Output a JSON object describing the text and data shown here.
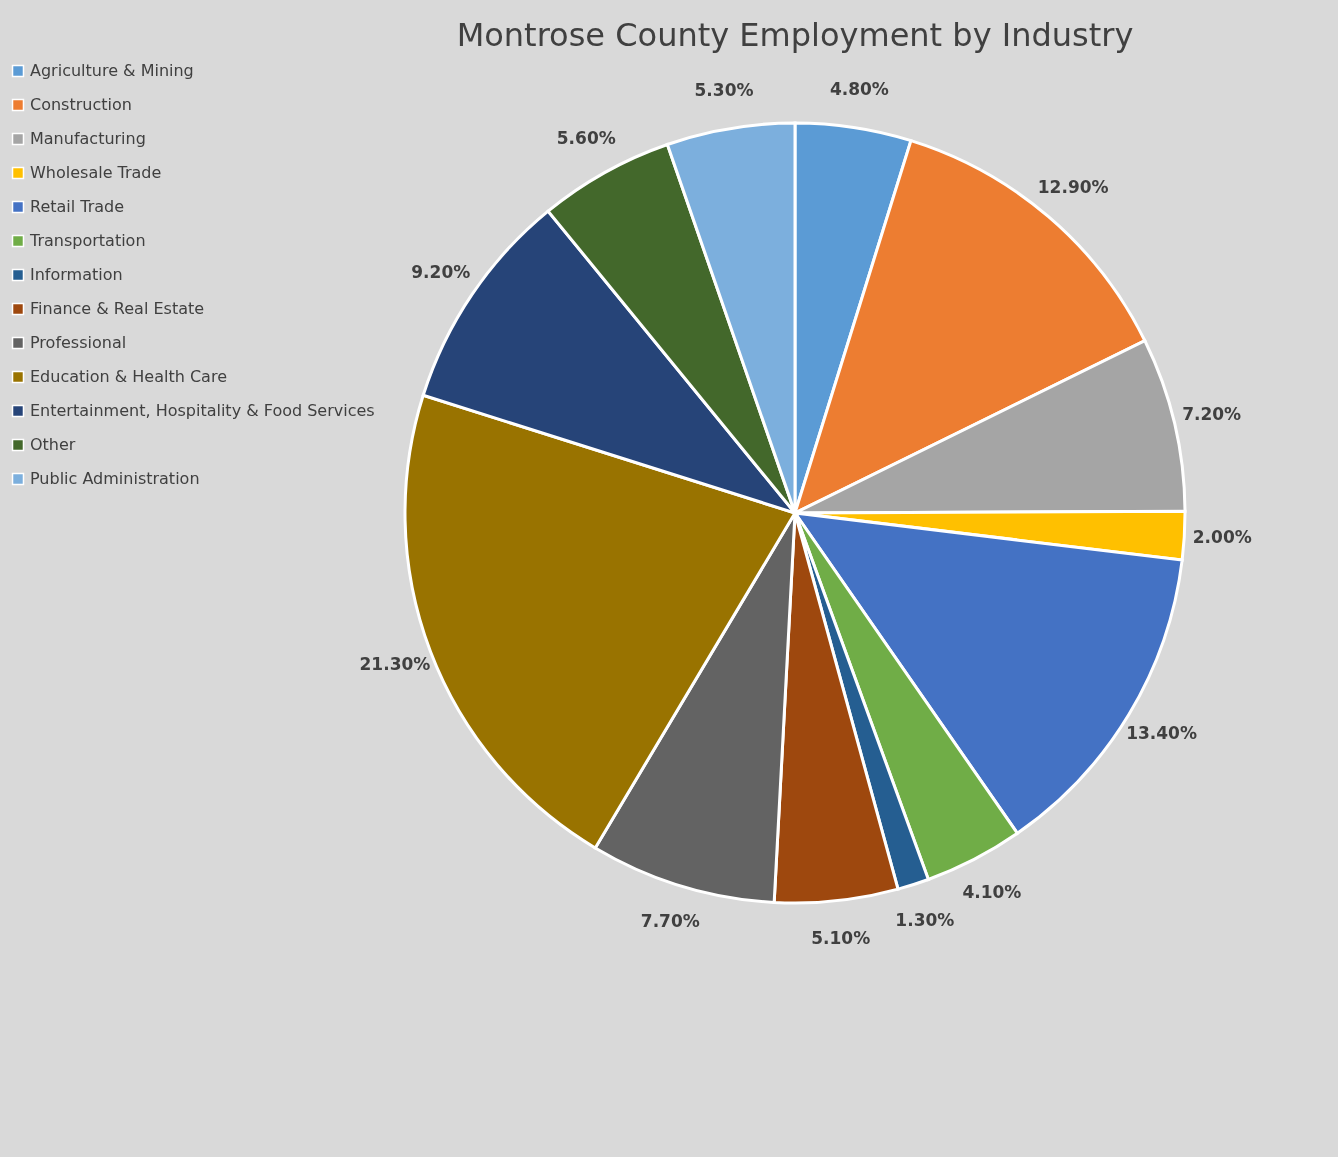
{
  "chart_data": {
    "type": "pie",
    "title": "Montrose County Employment by Industry",
    "categories": [
      "Agriculture & Mining",
      "Construction",
      "Manufacturing",
      "Wholesale Trade",
      "Retail Trade",
      "Transportation",
      "Information",
      "Finance & Real Estate",
      "Professional",
      "Education & Health Care",
      "Entertainment, Hospitality & Food Services",
      "Other",
      "Public Administration"
    ],
    "values": [
      4.8,
      12.9,
      7.2,
      2.0,
      13.4,
      4.1,
      1.3,
      5.1,
      7.7,
      21.3,
      9.2,
      5.6,
      5.3
    ],
    "value_labels": [
      "4.80%",
      "12.90%",
      "7.20%",
      "2.00%",
      "13.40%",
      "4.10%",
      "1.30%",
      "5.10%",
      "7.70%",
      "21.30%",
      "9.20%",
      "5.60%",
      "5.30%"
    ],
    "colors": [
      "#5b9bd5",
      "#ed7d31",
      "#a5a5a5",
      "#ffc000",
      "#4472c4",
      "#70ad47",
      "#255e91",
      "#9e480e",
      "#636363",
      "#997300",
      "#264478",
      "#43682b",
      "#7cafdd"
    ],
    "legend": "left"
  }
}
